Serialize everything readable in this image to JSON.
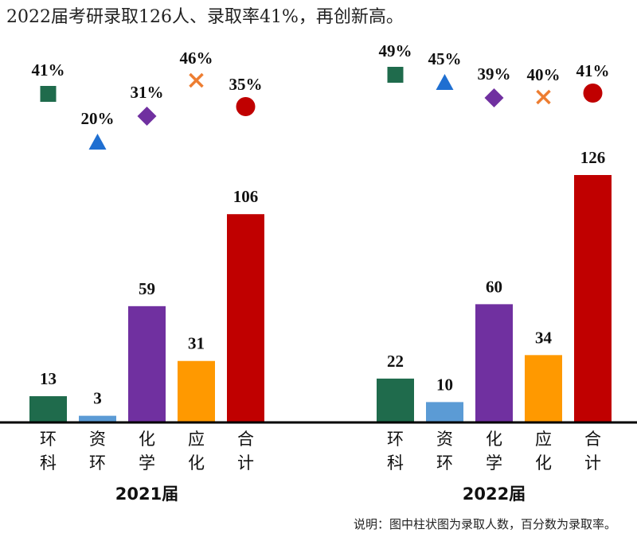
{
  "title": "2022届考研录取126人、录取率41%，再创新高。",
  "note": "说明：图中柱状图为录取人数，百分数为录取率。",
  "chart_data": {
    "type": "bar",
    "categories": [
      "环科",
      "资环",
      "化学",
      "应化",
      "合计"
    ],
    "groups": [
      {
        "name": "2021届",
        "counts": [
          13,
          3,
          59,
          31,
          106
        ],
        "rates": [
          "41%",
          "20%",
          "31%",
          "46%",
          "35%"
        ]
      },
      {
        "name": "2022届",
        "counts": [
          22,
          10,
          60,
          34,
          126
        ],
        "rates": [
          "49%",
          "45%",
          "39%",
          "40%",
          "41%"
        ]
      }
    ],
    "bar_colors": [
      "#1f6b4c",
      "#5b9bd5",
      "#7030a0",
      "#ff9900",
      "#c00000"
    ],
    "marker_colors": [
      "#1f6b4c",
      "#1f6fd1",
      "#7030a0",
      "#ed7d31",
      "#c00000"
    ],
    "markers": [
      "square",
      "triangle",
      "diamond",
      "x",
      "circle"
    ],
    "ylim": [
      0,
      126
    ]
  }
}
